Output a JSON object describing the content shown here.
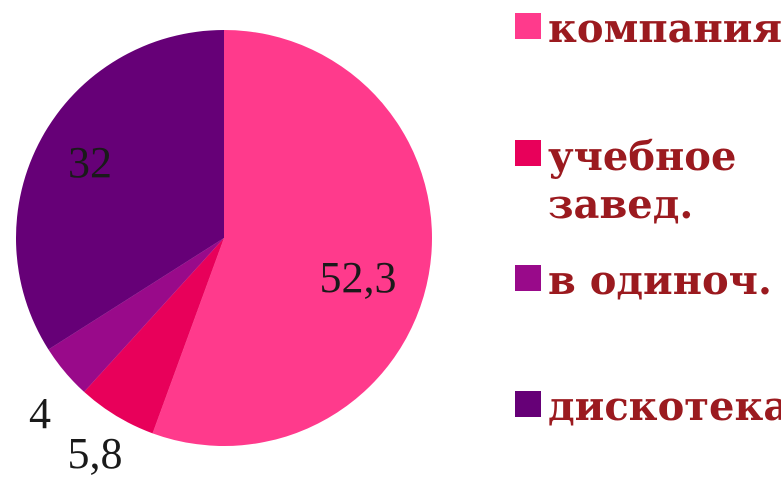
{
  "chart_data": {
    "type": "pie",
    "slices": [
      {
        "label": "компания",
        "legend_lines": [
          "компания"
        ],
        "value": 52.3,
        "value_label": "52,3",
        "color": "#ff3a8c"
      },
      {
        "label": "учебное завед.",
        "legend_lines": [
          "учебное",
          "завед."
        ],
        "value": 5.8,
        "value_label": "5,8",
        "color": "#e8005a"
      },
      {
        "label": "в одиноч.",
        "legend_lines": [
          "в одиноч."
        ],
        "value": 4,
        "value_label": "4",
        "color": "#990a8a"
      },
      {
        "label": "дискотека",
        "legend_lines": [
          "дискотека"
        ],
        "value": 32,
        "value_label": "32",
        "color": "#660077"
      }
    ],
    "start_angle_deg": 0,
    "direction": "clockwise",
    "legend_position": "right"
  }
}
